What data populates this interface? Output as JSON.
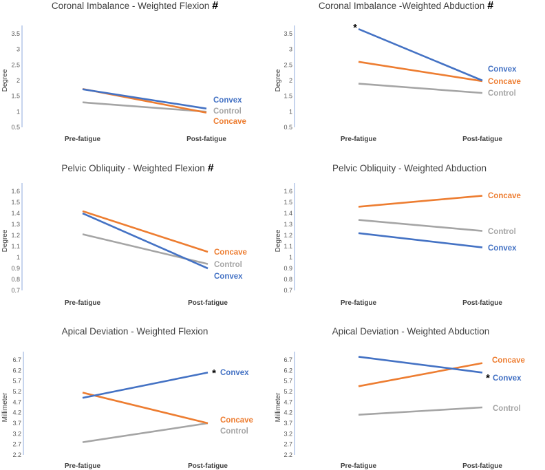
{
  "colors": {
    "Convex": "#4472C4",
    "Concave": "#ED7D31",
    "Control": "#A5A5A5",
    "axis": "#8EA9DB",
    "text": "#404040"
  },
  "chart_data": [
    {
      "type": "line",
      "title": "Coronal Imbalance - Weighted Flexion",
      "title_mark": "#",
      "xlabel": "",
      "ylabel": "Degree",
      "categories": [
        "Pre-fatigue",
        "Post-fatigue"
      ],
      "ylim": [
        0.5,
        3.5
      ],
      "yticks": [
        "0.5",
        "1",
        "1.5",
        "2",
        "2.5",
        "3",
        "3.5"
      ],
      "series": [
        {
          "name": "Convex",
          "values": [
            1.72,
            1.1
          ]
        },
        {
          "name": "Concave",
          "values": [
            1.73,
            0.97
          ]
        },
        {
          "name": "Control",
          "values": [
            1.3,
            1.0
          ]
        }
      ],
      "labels": [
        {
          "text": "Convex",
          "series": "Convex"
        },
        {
          "text": "Control",
          "series": "Control"
        },
        {
          "text": "Concave",
          "series": "Concave"
        }
      ],
      "annotations": []
    },
    {
      "type": "line",
      "title": "Coronal Imbalance -Weighted Abduction",
      "title_mark": "#",
      "xlabel": "",
      "ylabel": "Degree",
      "categories": [
        "Pre-fatigue",
        "Post-fatigue"
      ],
      "ylim": [
        0.5,
        3.5
      ],
      "yticks": [
        "0.5",
        "1",
        "1.5",
        "2",
        "2.5",
        "3",
        "3.5"
      ],
      "series": [
        {
          "name": "Convex",
          "values": [
            3.65,
            2.0
          ]
        },
        {
          "name": "Concave",
          "values": [
            2.6,
            1.98
          ]
        },
        {
          "name": "Control",
          "values": [
            1.9,
            1.6
          ]
        }
      ],
      "labels": [
        {
          "text": "Convex",
          "series": "Convex"
        },
        {
          "text": "Concave",
          "series": "Concave"
        },
        {
          "text": "Control",
          "series": "Control"
        }
      ],
      "annotations": [
        {
          "text": "*",
          "series": "Convex",
          "point": 0
        }
      ]
    },
    {
      "type": "line",
      "title": "Pelvic Obliquity - Weighted Flexion",
      "title_mark": "#",
      "xlabel": "",
      "ylabel": "Degree",
      "categories": [
        "Pre-fatigue",
        "Post-fatigue"
      ],
      "ylim": [
        0.7,
        1.6
      ],
      "yticks": [
        "0.7",
        "0.8",
        "0.9",
        "1",
        "1.1",
        "1.2",
        "1.3",
        "1.4",
        "1.5",
        "1.6"
      ],
      "series": [
        {
          "name": "Convex",
          "values": [
            1.4,
            0.9
          ]
        },
        {
          "name": "Concave",
          "values": [
            1.42,
            1.05
          ]
        },
        {
          "name": "Control",
          "values": [
            1.21,
            0.94
          ]
        }
      ],
      "labels": [
        {
          "text": "Concave",
          "series": "Concave"
        },
        {
          "text": "Control",
          "series": "Control"
        },
        {
          "text": "Convex",
          "series": "Convex"
        }
      ],
      "annotations": []
    },
    {
      "type": "line",
      "title": "Pelvic Obliquity - Weighted Abduction",
      "title_mark": "",
      "xlabel": "",
      "ylabel": "Degree",
      "categories": [
        "Pre-fatigue",
        "Post-fatigue"
      ],
      "ylim": [
        0.7,
        1.6
      ],
      "yticks": [
        "0.7",
        "0.8",
        "0.9",
        "1",
        "1.1",
        "1.2",
        "1.3",
        "1.4",
        "1.5",
        "1.6"
      ],
      "series": [
        {
          "name": "Convex",
          "values": [
            1.22,
            1.09
          ]
        },
        {
          "name": "Concave",
          "values": [
            1.46,
            1.56
          ]
        },
        {
          "name": "Control",
          "values": [
            1.34,
            1.24
          ]
        }
      ],
      "labels": [
        {
          "text": "Concave",
          "series": "Concave"
        },
        {
          "text": "Control",
          "series": "Control"
        },
        {
          "text": "Convex",
          "series": "Convex"
        }
      ],
      "annotations": []
    },
    {
      "type": "line",
      "title": "Apical Deviation - Weighted Flexion",
      "title_mark": "",
      "xlabel": "",
      "ylabel": "Millimeter",
      "categories": [
        "Pre-fatigue",
        "Post-fatigue"
      ],
      "ylim": [
        2.2,
        6.7
      ],
      "yticks": [
        "2.2",
        "2.7",
        "3.2",
        "3.7",
        "4.2",
        "4.7",
        "5.2",
        "5.7",
        "6.2",
        "6.7"
      ],
      "series": [
        {
          "name": "Convex",
          "values": [
            4.9,
            6.1
          ]
        },
        {
          "name": "Concave",
          "values": [
            5.15,
            3.7
          ]
        },
        {
          "name": "Control",
          "values": [
            2.8,
            3.7
          ]
        }
      ],
      "labels": [
        {
          "text": "Convex",
          "series": "Convex"
        },
        {
          "text": "Concave",
          "series": "Concave"
        },
        {
          "text": "Control",
          "series": "Control"
        }
      ],
      "annotations": [
        {
          "text": "*",
          "series": "Convex",
          "point": 1
        }
      ]
    },
    {
      "type": "line",
      "title": "Apical Deviation - Weighted Abduction",
      "title_mark": "",
      "xlabel": "",
      "ylabel": "Millimeter",
      "categories": [
        "Pre-fatigue",
        "Post-fatigue"
      ],
      "ylim": [
        2.2,
        6.7
      ],
      "yticks": [
        "2.2",
        "2.7",
        "3.2",
        "3.7",
        "4.2",
        "4.7",
        "5.2",
        "5.7",
        "6.2",
        "6.7"
      ],
      "series": [
        {
          "name": "Convex",
          "values": [
            6.85,
            6.1
          ]
        },
        {
          "name": "Concave",
          "values": [
            5.45,
            6.55
          ]
        },
        {
          "name": "Control",
          "values": [
            4.1,
            4.45
          ]
        }
      ],
      "labels": [
        {
          "text": "Concave",
          "series": "Concave"
        },
        {
          "text": "Convex",
          "series": "Convex"
        },
        {
          "text": "Control",
          "series": "Control"
        }
      ],
      "annotations": [
        {
          "text": "*",
          "series": "Convex",
          "point": 1
        }
      ]
    }
  ]
}
